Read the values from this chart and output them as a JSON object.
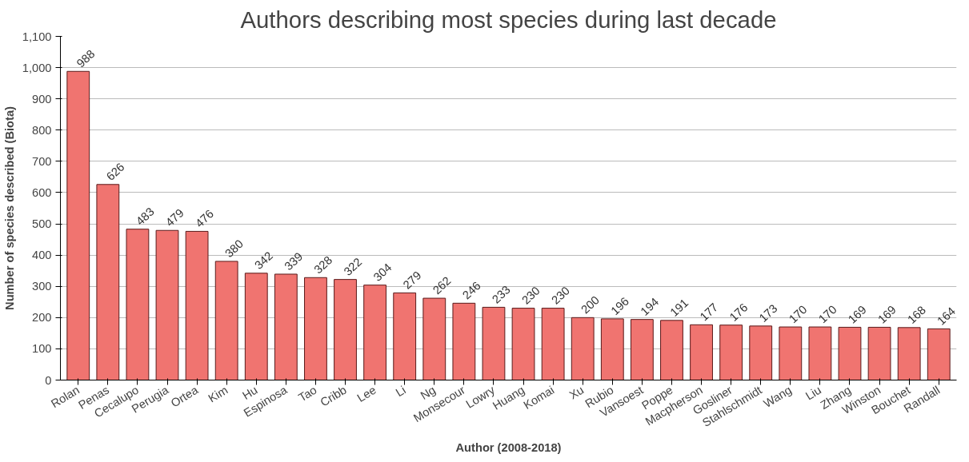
{
  "chart_data": {
    "type": "bar",
    "title": "Authors describing most species during last decade",
    "xlabel": "Author (2008-2018)",
    "ylabel": "Number of species described (Biota)",
    "categories": [
      "Rolan",
      "Penas",
      "Cecalupo",
      "Perugia",
      "Ortea",
      "Kim",
      "Hu",
      "Espinosa",
      "Tao",
      "Cribb",
      "Lee",
      "Li",
      "Ng",
      "Monsecour",
      "Lowry",
      "Huang",
      "Komai",
      "Xu",
      "Rubio",
      "Vansoest",
      "Poppe",
      "Macpherson",
      "Gosliner",
      "Stahlschmidt",
      "Wang",
      "Liu",
      "Zhang",
      "Winston",
      "Bouchet",
      "Randall"
    ],
    "values": [
      988,
      626,
      483,
      479,
      476,
      380,
      342,
      339,
      328,
      322,
      304,
      279,
      262,
      246,
      233,
      230,
      230,
      200,
      196,
      194,
      191,
      177,
      176,
      173,
      170,
      170,
      169,
      169,
      168,
      164
    ],
    "color": "#f07470",
    "ylim": [
      0,
      1100
    ],
    "yticks": [
      0,
      100,
      200,
      300,
      400,
      500,
      600,
      700,
      800,
      900,
      {
        "value": 1000,
        "label": "1,000"
      },
      {
        "value": 1100,
        "label": "1,100"
      }
    ],
    "grid": "y",
    "data_labels": true
  }
}
